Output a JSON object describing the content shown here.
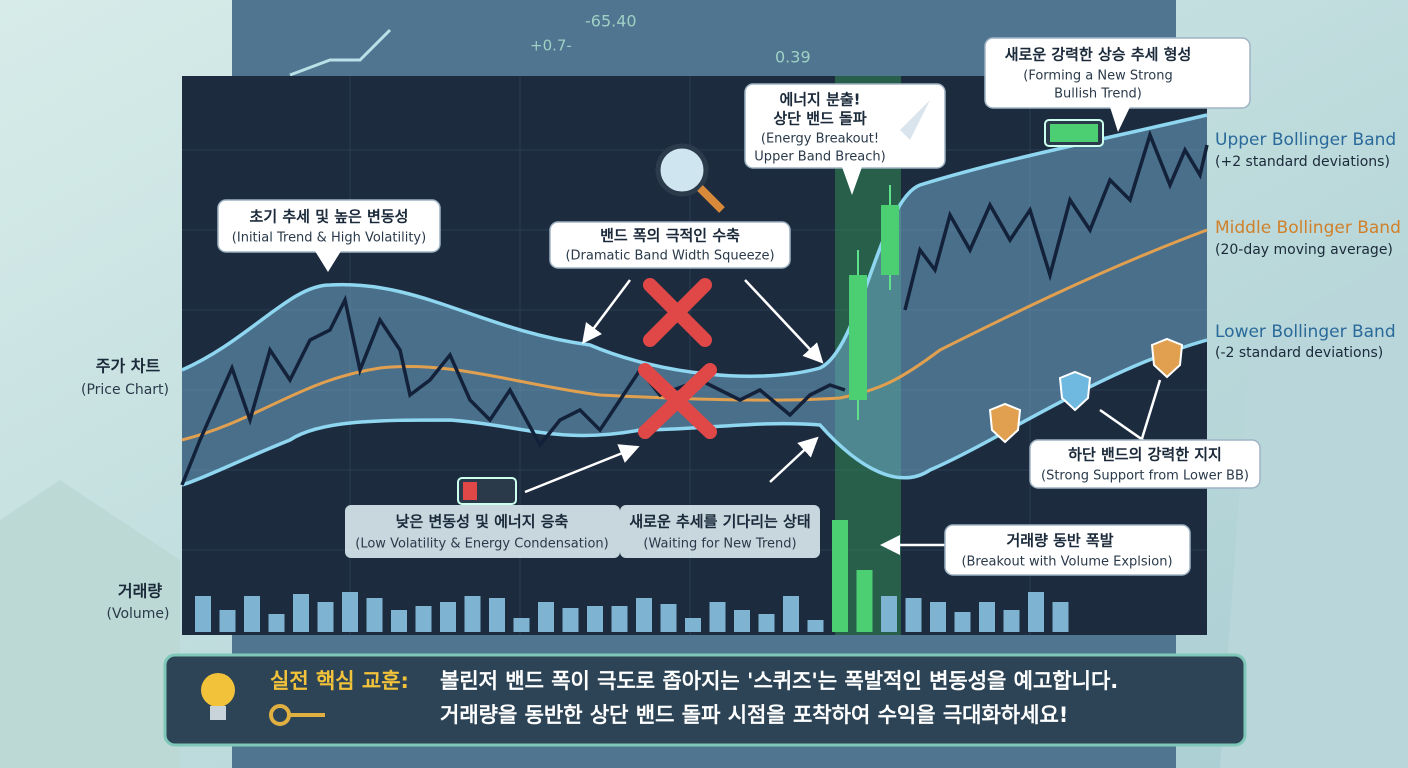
{
  "background_ticker": [
    "-65.40",
    "+0.7-",
    "0.39"
  ],
  "side_labels": {
    "price": {
      "ko": "주가 차트",
      "en": "(Price Chart)"
    },
    "volume": {
      "ko": "거래량",
      "en": "(Volume)"
    }
  },
  "legend": [
    {
      "name": "Upper Bollinger Band",
      "desc": "(+2 standard deviations)"
    },
    {
      "name": "Middle Bollinger Band",
      "desc": "(20-day moving average)"
    },
    {
      "name": "Lower Bollinger Band",
      "desc": "(-2 standard deviations)"
    }
  ],
  "callouts": {
    "initial": {
      "ko": "초기 추세 및 높은 변동성",
      "en": "(Initial Trend & High Volatility)"
    },
    "squeeze": {
      "ko": "밴드 폭의 극적인 수축",
      "en": "(Dramatic Band Width Squeeze)"
    },
    "breakout": {
      "ko": [
        "에너지 분출!",
        "상단 밴드 돌파"
      ],
      "en": [
        "(Energy Breakout!",
        "Upper Band Breach)"
      ]
    },
    "bullish": {
      "ko": "새로운 강력한 상승 추세 형성",
      "en": [
        "(Forming a New Strong",
        "Bullish Trend)"
      ]
    },
    "low_vol": {
      "ko": "낮은 변동성 및 에너지 응축",
      "en": "(Low Volatility & Energy Condensation)"
    },
    "waiting": {
      "ko": "새로운 추세를 기다리는 상태",
      "en": "(Waiting for New Trend)"
    },
    "support": {
      "ko": "하단 밴드의 강력한 지지",
      "en": "(Strong Support from Lower BB)"
    },
    "volume": {
      "ko": "거래량 동반 폭발",
      "en": "(Breakout with Volume Explsion)"
    }
  },
  "lesson": {
    "label": "실전 핵심 교훈:",
    "lines": [
      "볼린저 밴드 폭이 극도로 좁아지는 '스퀴즈'는 폭발적인 변동성을 예고합니다.",
      "거래량을 동반한 상단 밴드 돌파 시점을 포착하여 수익을 극대화하세요!"
    ]
  }
}
